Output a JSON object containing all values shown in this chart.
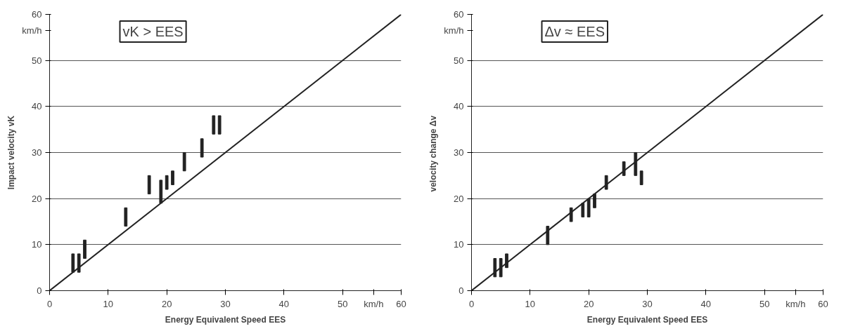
{
  "chart_data": [
    {
      "type": "bar",
      "xlabel": "Energy Equivalent Speed EES",
      "ylabel": "Impact velocity vK",
      "annotations": [
        "vK > EES"
      ],
      "xlim": [
        0,
        60
      ],
      "ylim": [
        0,
        60
      ],
      "xticks": [
        0,
        10,
        20,
        30,
        40,
        50,
        {
          "value": 55.3,
          "label": "km/h"
        },
        60
      ],
      "yticks": [
        0,
        10,
        20,
        30,
        40,
        50,
        {
          "value": 56.5,
          "label": "km/h"
        },
        60
      ],
      "grid": "y",
      "series": [
        {
          "color": "#222222",
          "x": [
            4,
            5,
            6,
            13,
            17,
            19,
            20,
            21,
            23,
            26,
            28,
            29
          ],
          "base": [
            4,
            4,
            7,
            14,
            21,
            19,
            22,
            23,
            26,
            29,
            34,
            34
          ],
          "values": [
            4,
            4,
            4,
            4,
            4,
            5,
            3,
            3,
            4,
            4,
            4,
            4
          ]
        },
        {
          "type": "line",
          "color": "#222222",
          "x": [
            0,
            60
          ],
          "values": [
            0,
            60
          ]
        }
      ]
    },
    {
      "type": "bar",
      "xlabel": "Energy Equivalent Speed EES",
      "ylabel": "velocity change  Δv",
      "annotations": [
        "Δv ≈ EES"
      ],
      "xlim": [
        0,
        60
      ],
      "ylim": [
        0,
        60
      ],
      "xticks": [
        0,
        10,
        20,
        30,
        40,
        50,
        {
          "value": 55.3,
          "label": "km/h"
        },
        60
      ],
      "yticks": [
        0,
        10,
        20,
        30,
        40,
        50,
        {
          "value": 56.5,
          "label": "km/h"
        },
        60
      ],
      "grid": "y",
      "series": [
        {
          "color": "#222222",
          "x": [
            4,
            5,
            6,
            13,
            17,
            19,
            20,
            21,
            23,
            26,
            28,
            29
          ],
          "base": [
            3,
            3,
            5,
            10,
            15,
            16,
            16,
            18,
            22,
            25,
            25,
            23
          ],
          "values": [
            4,
            4,
            3,
            4,
            3,
            3,
            4,
            3,
            3,
            3,
            5,
            3
          ]
        },
        {
          "type": "line",
          "color": "#222222",
          "x": [
            0,
            60
          ],
          "values": [
            0,
            60
          ]
        }
      ]
    }
  ]
}
